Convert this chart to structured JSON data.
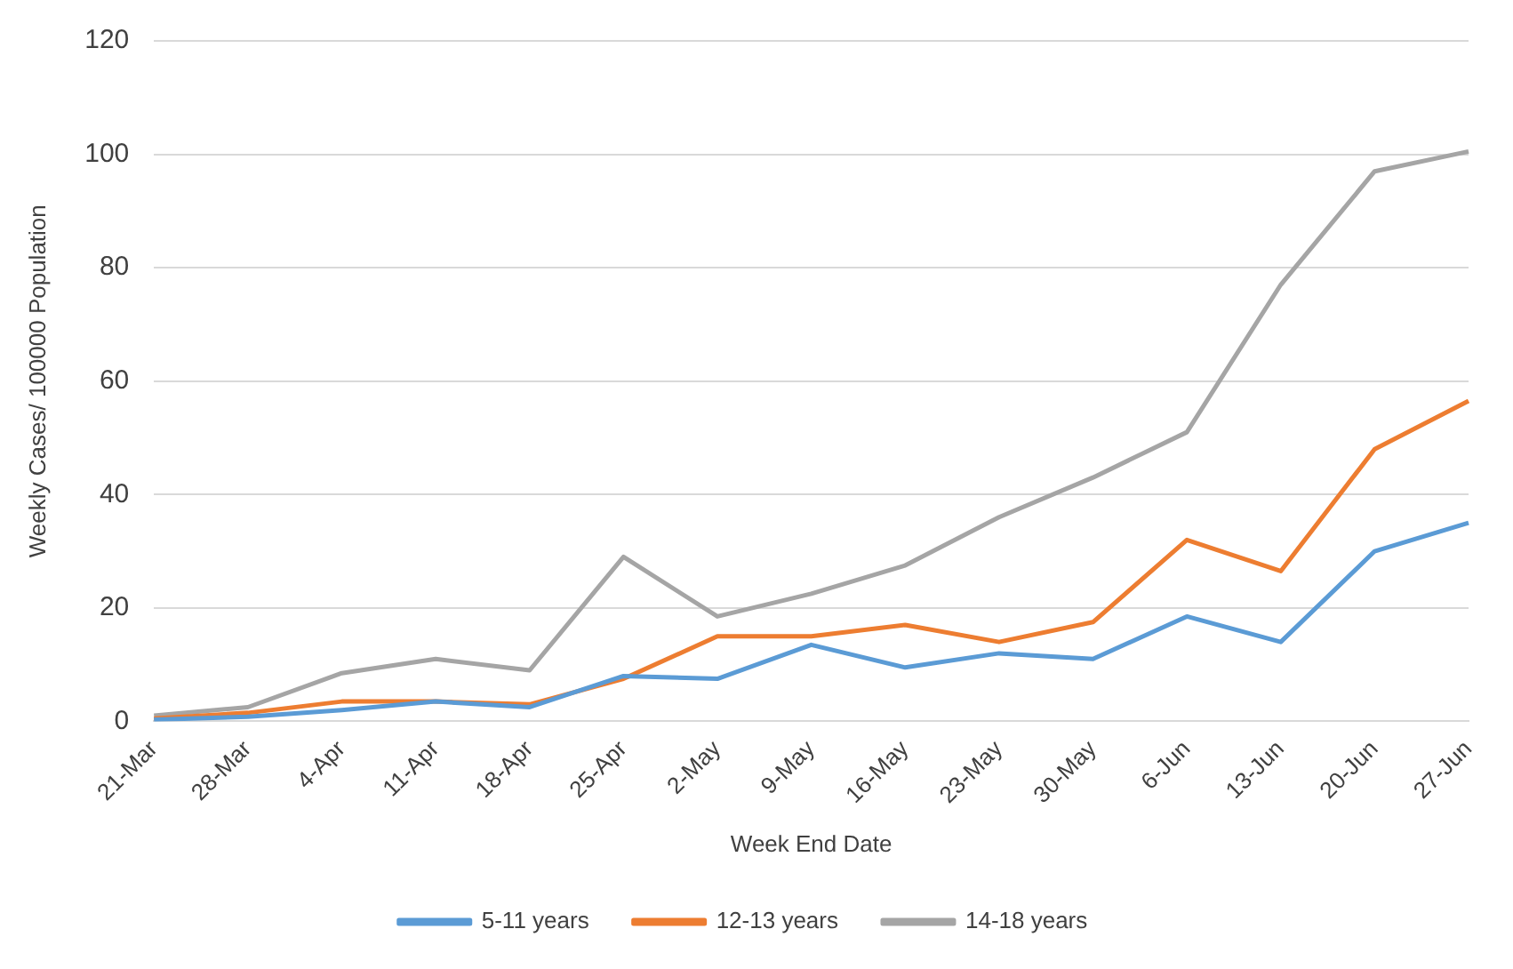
{
  "chart_data": {
    "type": "line",
    "xlabel": "Week End Date",
    "ylabel": "Weekly Cases/ 100000 Population",
    "categories": [
      "21-Mar",
      "28-Mar",
      "4-Apr",
      "11-Apr",
      "18-Apr",
      "25-Apr",
      "2-May",
      "9-May",
      "16-May",
      "23-May",
      "30-May",
      "6-Jun",
      "13-Jun",
      "20-Jun",
      "27-Jun"
    ],
    "series": [
      {
        "name": "5-11 years",
        "color": "#5b9bd5",
        "values": [
          0.3,
          0.8,
          2,
          3.5,
          2.5,
          8,
          7.5,
          13.5,
          9.5,
          12,
          11,
          18.5,
          14,
          30,
          35
        ]
      },
      {
        "name": "12-13 years",
        "color": "#ed7d31",
        "values": [
          0.5,
          1.5,
          3.5,
          3.5,
          3,
          7.5,
          15,
          15,
          17,
          14,
          17.5,
          32,
          26.5,
          48,
          56.5
        ]
      },
      {
        "name": "14-18 years",
        "color": "#a5a5a5",
        "values": [
          1,
          2.5,
          8.5,
          11,
          9,
          29,
          18.5,
          22.5,
          27.5,
          36,
          43,
          51,
          77,
          97,
          100.5
        ]
      }
    ],
    "ylim": [
      0,
      120
    ],
    "yticks": [
      0,
      20,
      40,
      60,
      80,
      100,
      120
    ],
    "grid": "y",
    "legend": "bottom",
    "marker": "none",
    "line_style": "solid"
  }
}
